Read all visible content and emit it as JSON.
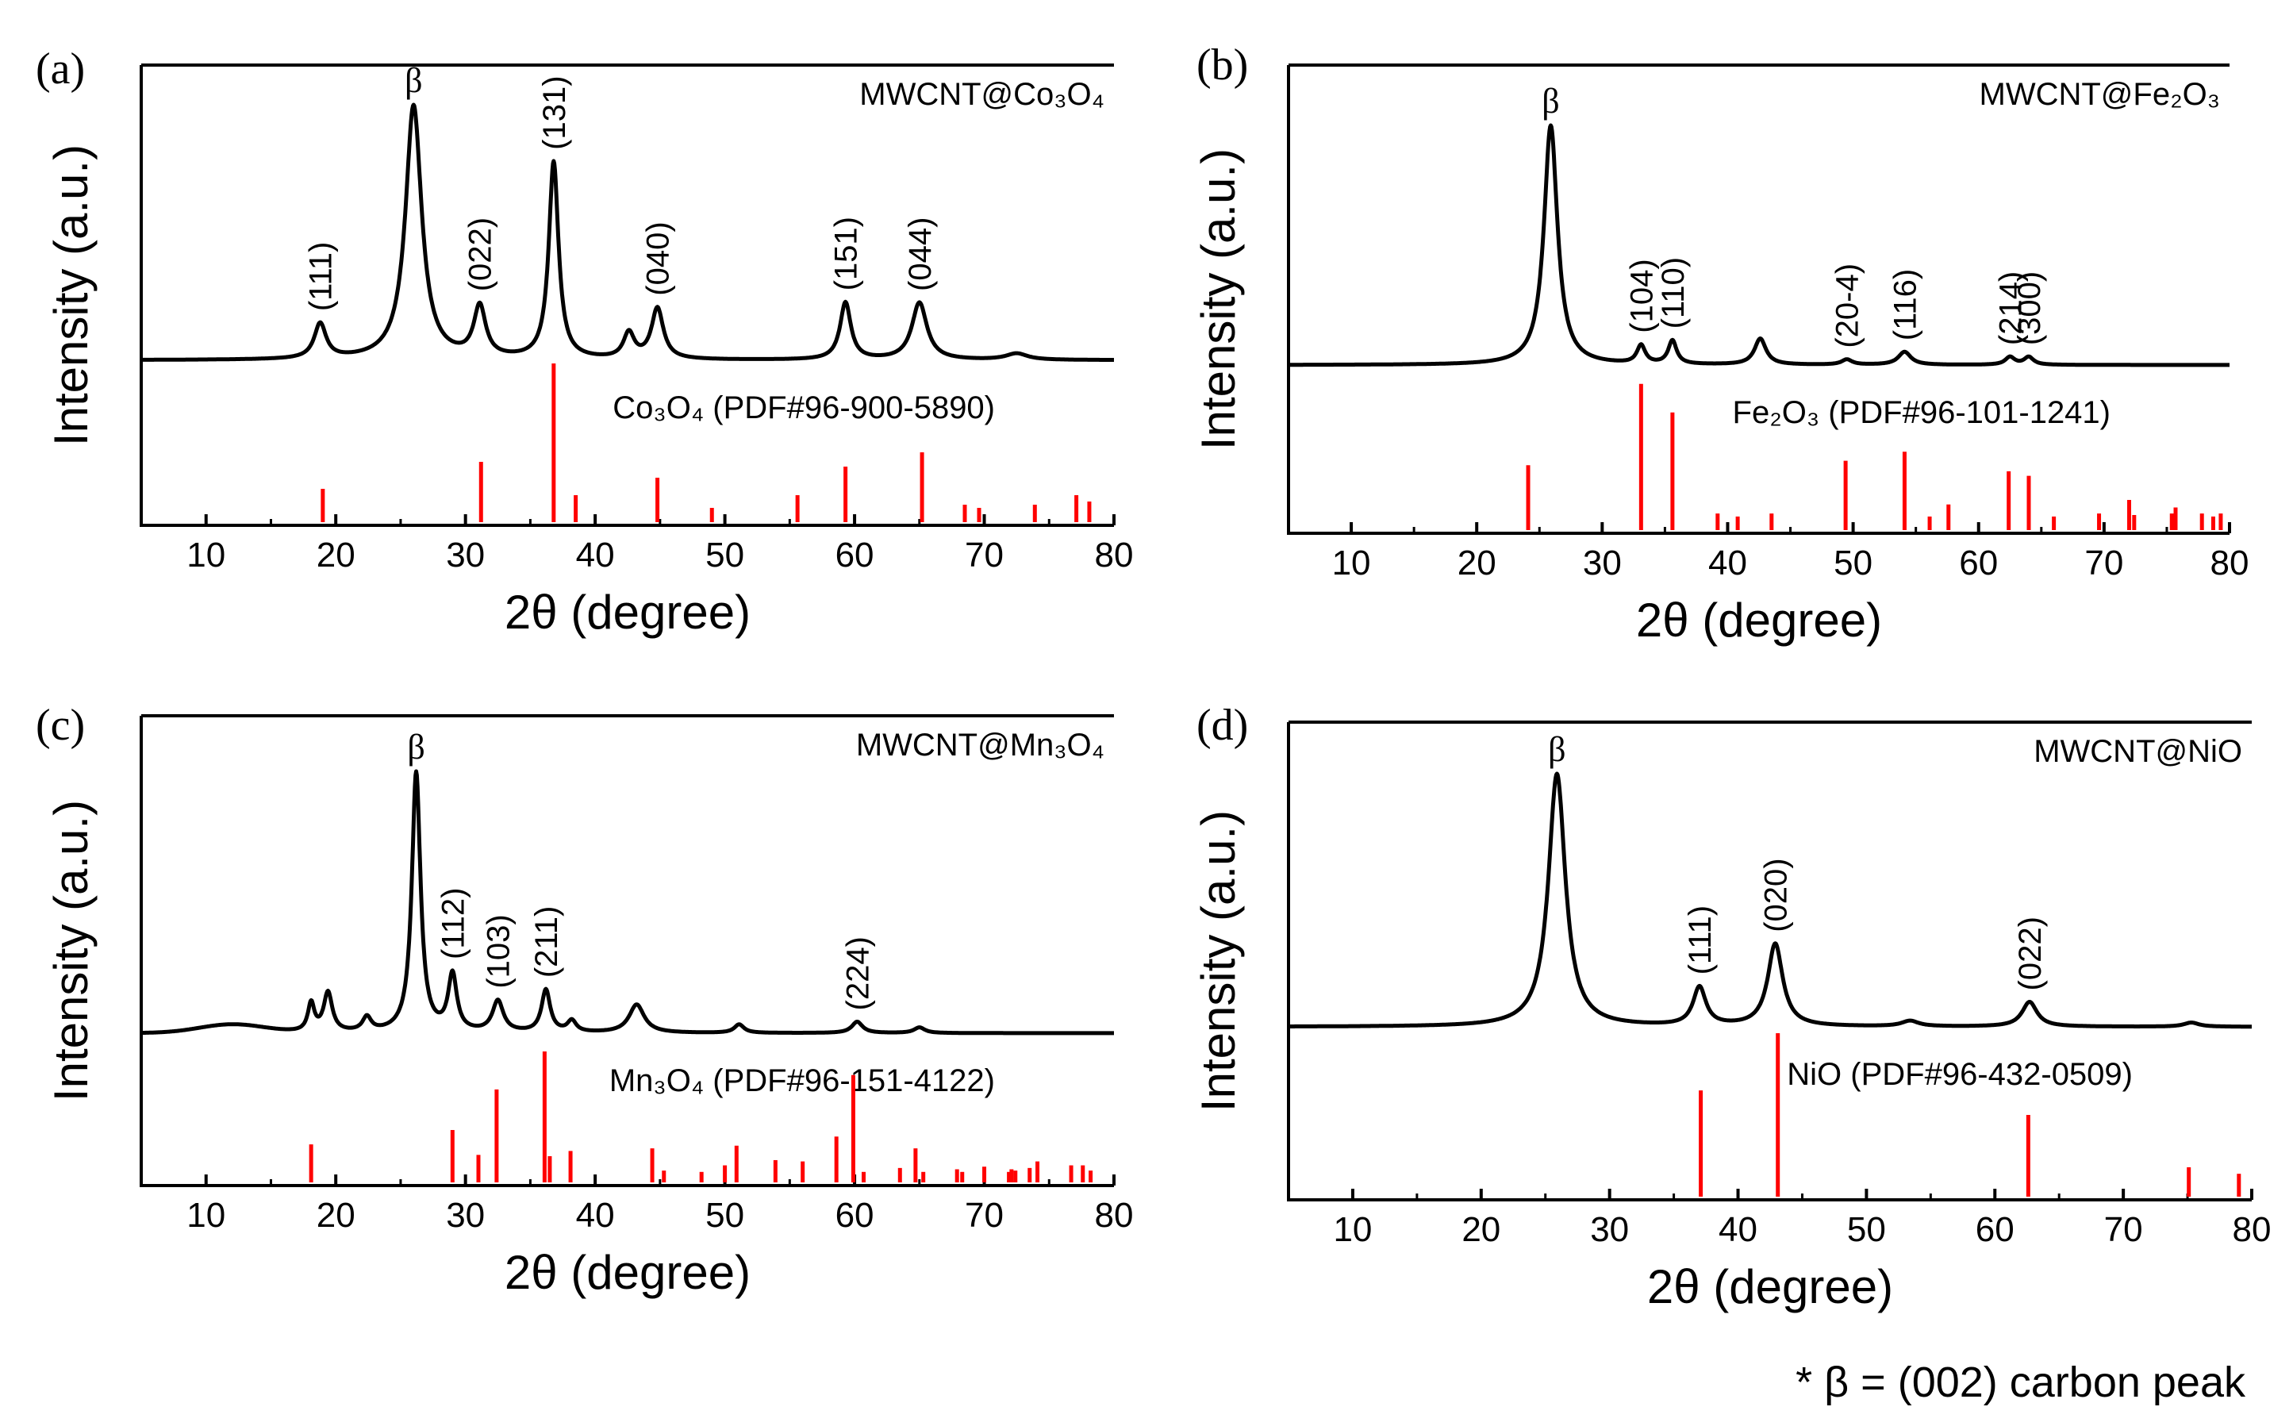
{
  "footnote": "* β = (002) carbon peak",
  "colors": {
    "pattern": "#000000",
    "reference": "#ff0000",
    "axis": "#000000"
  },
  "panels": [
    {
      "label": "(a)",
      "sample": "MWCNT@Co₃O₄",
      "reference_label": "Co₃O₄ (PDF#96-900-5890)",
      "xlabel": "2θ (degree)",
      "ylabel": "Intensity (a.u.)"
    },
    {
      "label": "(b)",
      "sample": "MWCNT@Fe₂O₃",
      "reference_label": "Fe₂O₃ (PDF#96-101-1241)",
      "xlabel": "2θ (degree)",
      "ylabel": "Intensity (a.u.)"
    },
    {
      "label": "(c)",
      "sample": "MWCNT@Mn₃O₄",
      "reference_label": "Mn₃O₄ (PDF#96-151-4122)",
      "xlabel": "2θ (degree)",
      "ylabel": "Intensity (a.u.)"
    },
    {
      "label": "(d)",
      "sample": "MWCNT@NiO",
      "reference_label": "NiO (PDF#96-432-0509)",
      "xlabel": "2θ (degree)",
      "ylabel": "Intensity (a.u.)"
    }
  ],
  "chart_data": [
    {
      "type": "line",
      "title": "MWCNT@Co₃O₄",
      "xlabel": "2θ (degree)",
      "ylabel": "Intensity (a.u.)",
      "xlim": [
        5,
        80
      ],
      "xticks": [
        10,
        20,
        30,
        40,
        50,
        60,
        70,
        80
      ],
      "baseline": 0.08,
      "broad": [],
      "peaks": [
        {
          "x": 18.8,
          "h": 0.11,
          "w": 0.55,
          "label": "(111)"
        },
        {
          "x": 26.0,
          "h": 0.8,
          "w": 0.75,
          "label": "β"
        },
        {
          "x": 31.1,
          "h": 0.16,
          "w": 0.55,
          "label": "(022)"
        },
        {
          "x": 36.8,
          "h": 0.62,
          "w": 0.45,
          "label": "(131)"
        },
        {
          "x": 42.6,
          "h": 0.08,
          "w": 0.5,
          "label": ""
        },
        {
          "x": 44.8,
          "h": 0.16,
          "w": 0.55,
          "label": "(040)"
        },
        {
          "x": 59.3,
          "h": 0.18,
          "w": 0.5,
          "label": "(151)"
        },
        {
          "x": 65.0,
          "h": 0.18,
          "w": 0.7,
          "label": "(044)"
        },
        {
          "x": 72.5,
          "h": 0.02,
          "w": 1.0,
          "label": ""
        }
      ],
      "reference": {
        "x": [
          19.0,
          31.2,
          36.8,
          38.5,
          44.8,
          49.0,
          55.6,
          59.3,
          65.2,
          68.5,
          69.6,
          73.9,
          77.1,
          78.1
        ],
        "values": [
          0.21,
          0.38,
          1.0,
          0.17,
          0.28,
          0.09,
          0.17,
          0.35,
          0.44,
          0.11,
          0.09,
          0.11,
          0.17,
          0.13
        ]
      }
    },
    {
      "type": "line",
      "title": "MWCNT@Fe₂O₃",
      "xlabel": "2θ (degree)",
      "ylabel": "Intensity (a.u.)",
      "xlim": [
        5,
        80
      ],
      "xticks": [
        10,
        20,
        30,
        40,
        50,
        60,
        70,
        80
      ],
      "baseline": 0.08,
      "broad": [],
      "peaks": [
        {
          "x": 25.9,
          "h": 0.92,
          "w": 0.65,
          "label": "β"
        },
        {
          "x": 33.1,
          "h": 0.07,
          "w": 0.4,
          "label": "(104)"
        },
        {
          "x": 35.6,
          "h": 0.09,
          "w": 0.4,
          "label": "(110)"
        },
        {
          "x": 42.6,
          "h": 0.1,
          "w": 0.55,
          "label": ""
        },
        {
          "x": 49.5,
          "h": 0.02,
          "w": 0.5,
          "label": "(20-4)"
        },
        {
          "x": 54.1,
          "h": 0.05,
          "w": 0.6,
          "label": "(116)"
        },
        {
          "x": 62.5,
          "h": 0.03,
          "w": 0.45,
          "label": "(214)"
        },
        {
          "x": 64.0,
          "h": 0.03,
          "w": 0.45,
          "label": "(300)"
        }
      ],
      "reference": {
        "x": [
          24.1,
          33.1,
          35.6,
          39.2,
          40.8,
          43.5,
          49.4,
          54.1,
          56.1,
          57.6,
          62.4,
          64.0,
          66.0,
          69.6,
          72.0,
          72.4,
          75.4,
          75.7,
          77.8,
          78.7,
          79.3
        ],
        "values": [
          0.43,
          0.97,
          0.78,
          0.11,
          0.09,
          0.11,
          0.46,
          0.52,
          0.09,
          0.17,
          0.39,
          0.36,
          0.09,
          0.11,
          0.2,
          0.1,
          0.11,
          0.15,
          0.11,
          0.09,
          0.11
        ]
      }
    },
    {
      "type": "line",
      "title": "MWCNT@Mn₃O₄",
      "xlabel": "2θ (degree)",
      "ylabel": "Intensity (a.u.)",
      "xlim": [
        5,
        80
      ],
      "xticks": [
        10,
        20,
        30,
        40,
        50,
        60,
        70,
        80
      ],
      "baseline": 0.06,
      "broad": [
        {
          "x": 12.0,
          "h": 0.03,
          "w": 2.5
        }
      ],
      "peaks": [
        {
          "x": 18.1,
          "h": 0.1,
          "w": 0.3,
          "label": ""
        },
        {
          "x": 19.4,
          "h": 0.14,
          "w": 0.4,
          "label": ""
        },
        {
          "x": 22.4,
          "h": 0.05,
          "w": 0.4,
          "label": ""
        },
        {
          "x": 26.2,
          "h": 0.92,
          "w": 0.4,
          "label": "β"
        },
        {
          "x": 29.0,
          "h": 0.2,
          "w": 0.4,
          "label": "(112)"
        },
        {
          "x": 32.5,
          "h": 0.11,
          "w": 0.5,
          "label": "(103)"
        },
        {
          "x": 36.2,
          "h": 0.15,
          "w": 0.4,
          "label": "(211)"
        },
        {
          "x": 38.2,
          "h": 0.04,
          "w": 0.4,
          "label": ""
        },
        {
          "x": 43.2,
          "h": 0.1,
          "w": 0.7,
          "label": ""
        },
        {
          "x": 51.1,
          "h": 0.03,
          "w": 0.45,
          "label": ""
        },
        {
          "x": 60.2,
          "h": 0.04,
          "w": 0.5,
          "label": "(224)"
        },
        {
          "x": 65.0,
          "h": 0.02,
          "w": 0.5,
          "label": ""
        }
      ],
      "reference": {
        "x": [
          18.1,
          29.0,
          31.0,
          32.4,
          36.1,
          36.5,
          38.1,
          44.4,
          45.3,
          48.2,
          50.0,
          50.9,
          53.9,
          56.0,
          58.6,
          59.9,
          60.7,
          63.5,
          64.7,
          65.3,
          67.9,
          68.3,
          70.0,
          71.9,
          72.1,
          72.4,
          73.5,
          74.1,
          76.7,
          77.6,
          78.2
        ],
        "values": [
          0.29,
          0.4,
          0.21,
          0.71,
          1.0,
          0.2,
          0.24,
          0.26,
          0.09,
          0.08,
          0.13,
          0.28,
          0.17,
          0.16,
          0.35,
          0.82,
          0.08,
          0.11,
          0.26,
          0.08,
          0.1,
          0.08,
          0.12,
          0.08,
          0.1,
          0.09,
          0.11,
          0.16,
          0.13,
          0.13,
          0.09
        ]
      }
    },
    {
      "type": "line",
      "title": "MWCNT@NiO",
      "xlabel": "2θ (degree)",
      "ylabel": "Intensity (a.u.)",
      "xlim": [
        5,
        80
      ],
      "xticks": [
        10,
        20,
        30,
        40,
        50,
        60,
        70,
        80
      ],
      "baseline": 0.06,
      "broad": [],
      "peaks": [
        {
          "x": 25.9,
          "h": 0.92,
          "w": 0.8,
          "label": "β"
        },
        {
          "x": 37.0,
          "h": 0.14,
          "w": 0.6,
          "label": "(111)"
        },
        {
          "x": 42.9,
          "h": 0.3,
          "w": 0.7,
          "label": "(020)"
        },
        {
          "x": 53.4,
          "h": 0.02,
          "w": 0.8,
          "label": ""
        },
        {
          "x": 62.7,
          "h": 0.09,
          "w": 0.7,
          "label": "(022)"
        },
        {
          "x": 75.3,
          "h": 0.015,
          "w": 0.7,
          "label": ""
        }
      ],
      "reference": {
        "x": [
          37.1,
          43.1,
          62.6,
          75.1,
          79.0
        ],
        "values": [
          0.65,
          1.0,
          0.5,
          0.18,
          0.14
        ]
      }
    }
  ]
}
